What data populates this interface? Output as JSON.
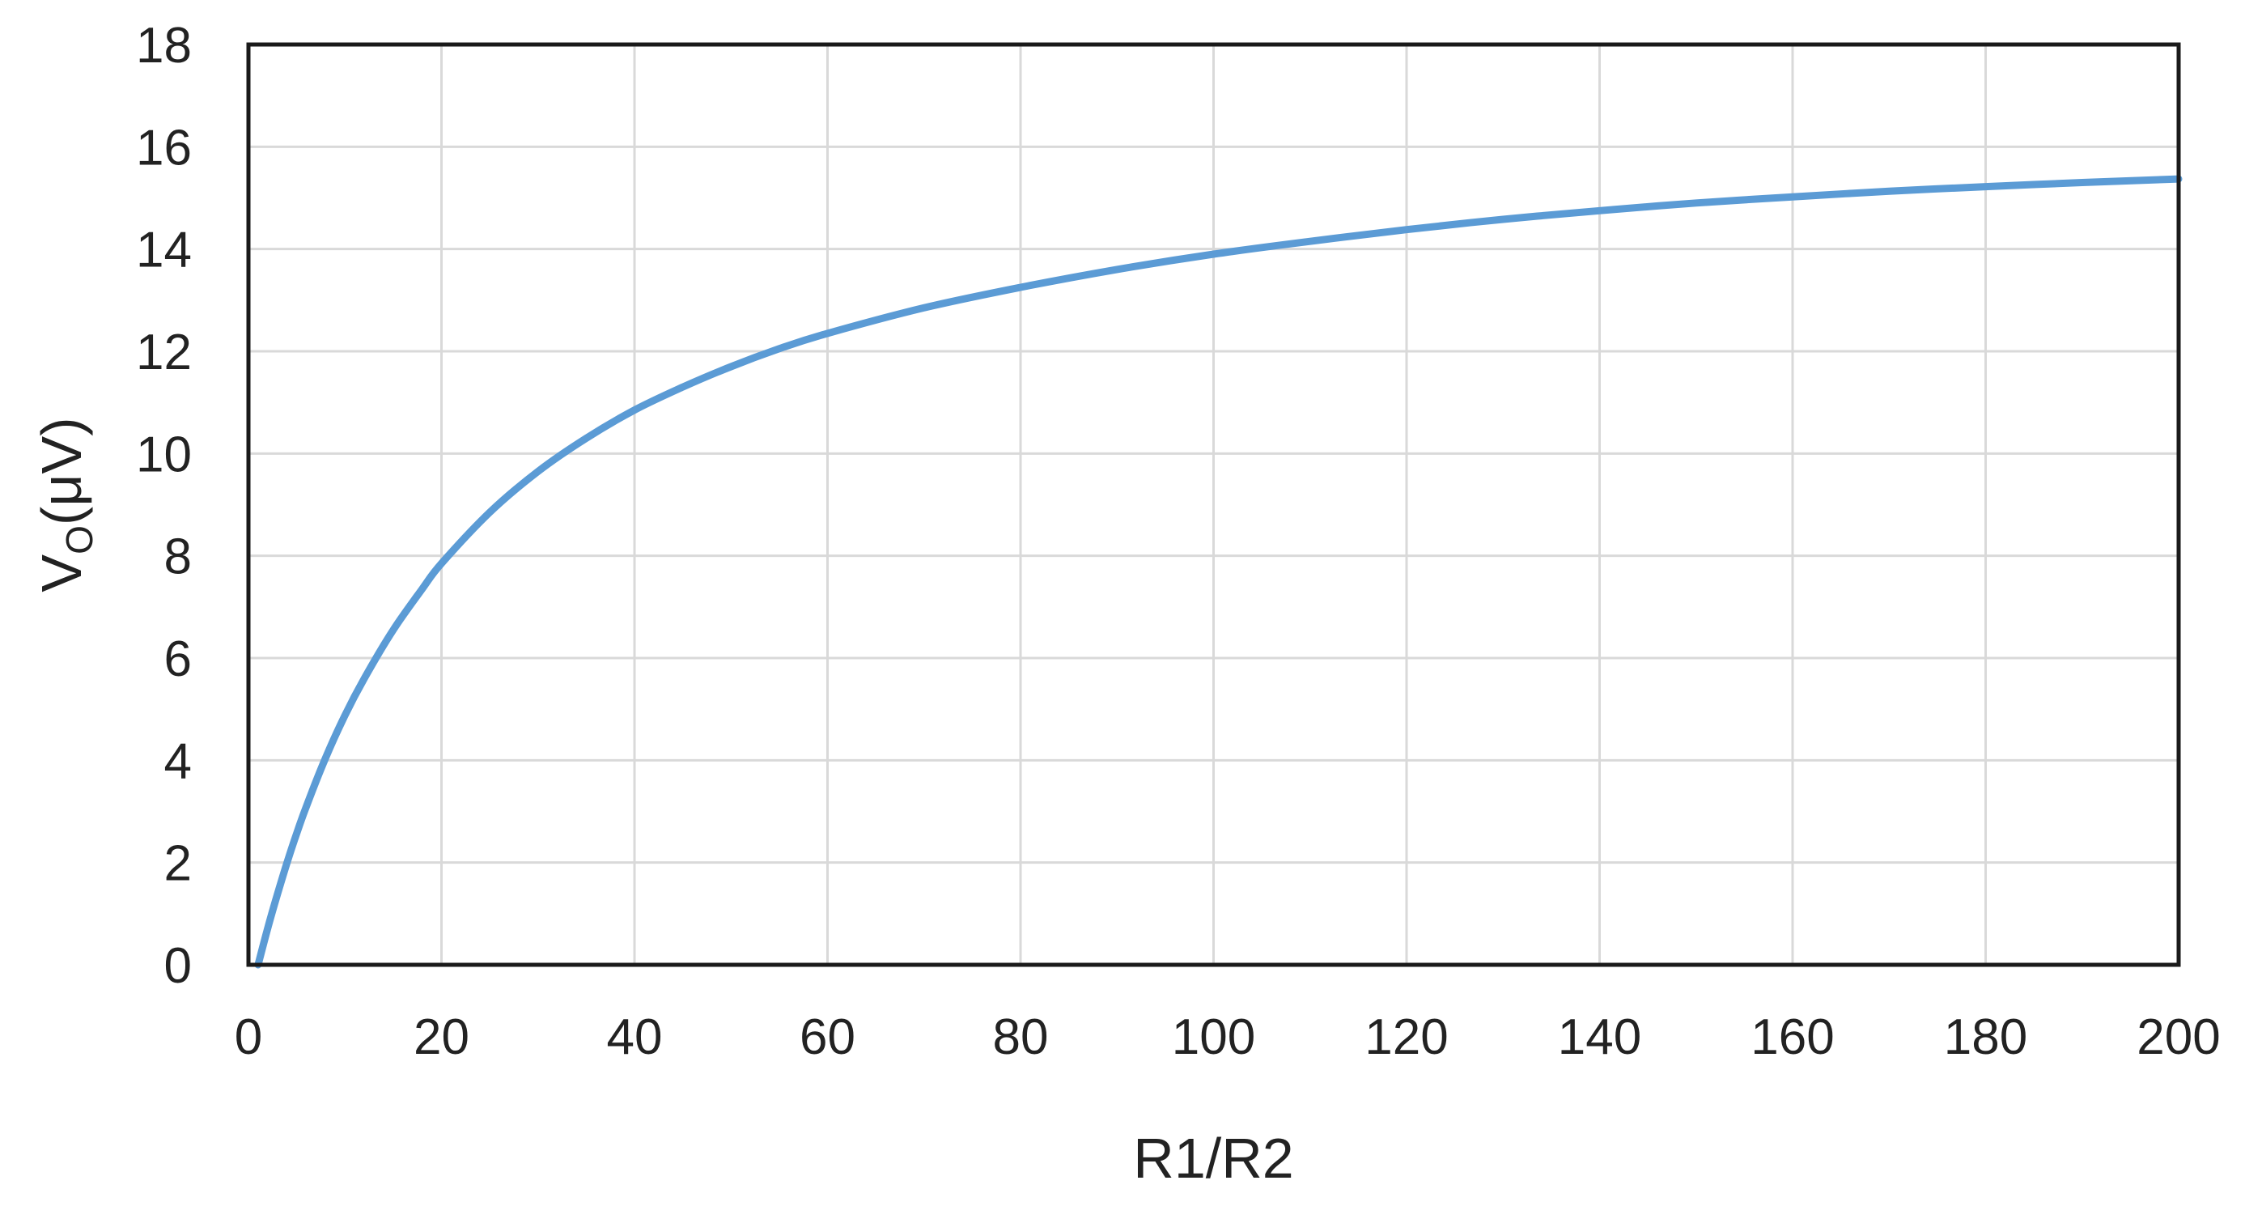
{
  "chart_data": {
    "type": "line",
    "title": "",
    "xlabel": "R1/R2",
    "ylabel": {
      "main": "V",
      "sub": "O",
      "unit": "(μV)"
    },
    "xlim": [
      0,
      200
    ],
    "ylim": [
      0,
      18
    ],
    "x_ticks": [
      0,
      20,
      40,
      60,
      80,
      100,
      120,
      140,
      160,
      180,
      200
    ],
    "y_ticks": [
      0,
      2,
      4,
      6,
      8,
      10,
      12,
      14,
      16,
      18
    ],
    "grid": true,
    "legend": "none",
    "series": [
      {
        "color": "#5B9BD5",
        "x": [
          1,
          2,
          3,
          4,
          5,
          6,
          8,
          10,
          12,
          15,
          18,
          20,
          25,
          30,
          35,
          40,
          45,
          50,
          55,
          60,
          70,
          80,
          90,
          100,
          110,
          120,
          130,
          140,
          150,
          160,
          170,
          180,
          190,
          200
        ],
        "y": [
          0.0,
          0.72,
          1.38,
          2.0,
          2.57,
          3.1,
          4.05,
          4.88,
          5.6,
          6.55,
          7.35,
          7.85,
          8.85,
          9.65,
          10.3,
          10.85,
          11.3,
          11.7,
          12.05,
          12.35,
          12.85,
          13.25,
          13.6,
          13.9,
          14.15,
          14.38,
          14.58,
          14.75,
          14.9,
          15.02,
          15.13,
          15.22,
          15.3,
          15.37
        ]
      }
    ]
  }
}
